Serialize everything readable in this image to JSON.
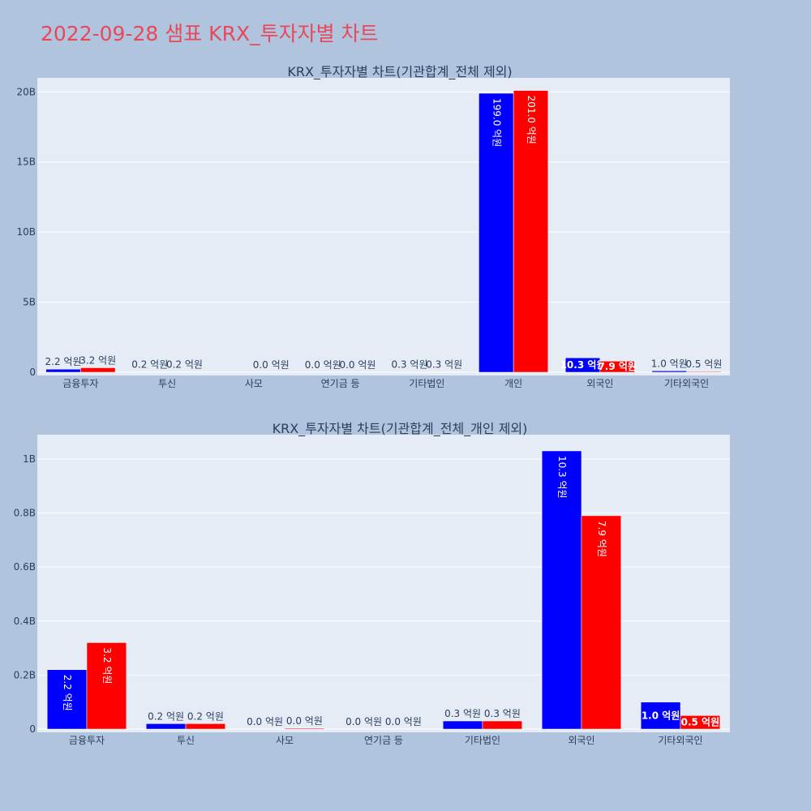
{
  "page": {
    "title": "2022-09-28 샘표 KRX_투자자별 차트"
  },
  "colors": {
    "series_a": "#0000ff",
    "series_b": "#ff0000",
    "title": "#e8485a"
  },
  "chart_data": [
    {
      "type": "bar",
      "title": "KRX_투자자별 차트(기관합계_전체 제외)",
      "categories": [
        "금융투자",
        "투신",
        "사모",
        "연기금 등",
        "기타법인",
        "개인",
        "외국인",
        "기타외국인"
      ],
      "y_tick_labels": [
        "0",
        "5B",
        "10B",
        "15B",
        "20B"
      ],
      "y_tick_values": [
        0,
        5000000000,
        10000000000,
        15000000000,
        20000000000
      ],
      "ylim": [
        0,
        21000000000
      ],
      "grid": true,
      "series": [
        {
          "color": "#0000ff",
          "values": [
            220000000,
            20000000,
            0,
            0,
            30000000,
            19900000000,
            1030000000,
            100000000
          ],
          "labels": [
            "2.2 억원",
            "0.2 억원",
            "",
            "0.0 억원",
            "0.3 억원",
            "199.0 억원",
            "10.3 억원",
            "1.0 억원"
          ]
        },
        {
          "color": "#ff0000",
          "values": [
            320000000,
            20000000,
            0,
            0,
            30000000,
            20100000000,
            790000000,
            50000000
          ],
          "labels": [
            "3.2 억원",
            "0.2 억원",
            "0.0 억원",
            "0.0 억원",
            "0.3 억원",
            "201.0 억원",
            "7.9 억원",
            "0.5 억원"
          ]
        }
      ]
    },
    {
      "type": "bar",
      "title": "KRX_투자자별 차트(기관합계_전체_개인 제외)",
      "categories": [
        "금융투자",
        "투신",
        "사모",
        "연기금 등",
        "기타법인",
        "외국인",
        "기타외국인"
      ],
      "y_tick_labels": [
        "0",
        "0.2B",
        "0.4B",
        "0.6B",
        "0.8B",
        "1B"
      ],
      "y_tick_values": [
        0,
        200000000,
        400000000,
        600000000,
        800000000,
        1000000000
      ],
      "ylim": [
        0,
        1090000000
      ],
      "grid": true,
      "series": [
        {
          "color": "#0000ff",
          "values": [
            220000000,
            20000000,
            0,
            0,
            30000000,
            1030000000,
            100000000
          ],
          "labels": [
            "2.2 억원",
            "0.2 억원",
            "0.0 억원",
            "0.0 억원",
            "0.3 억원",
            "10.3 억원",
            "1.0 억원"
          ]
        },
        {
          "color": "#ff0000",
          "values": [
            320000000,
            20000000,
            3000000,
            0,
            30000000,
            790000000,
            50000000
          ],
          "labels": [
            "3.2 억원",
            "0.2 억원",
            "0.0 억원",
            "0.0 억원",
            "0.3 억원",
            "7.9 억원",
            "0.5 억원"
          ]
        }
      ]
    }
  ]
}
